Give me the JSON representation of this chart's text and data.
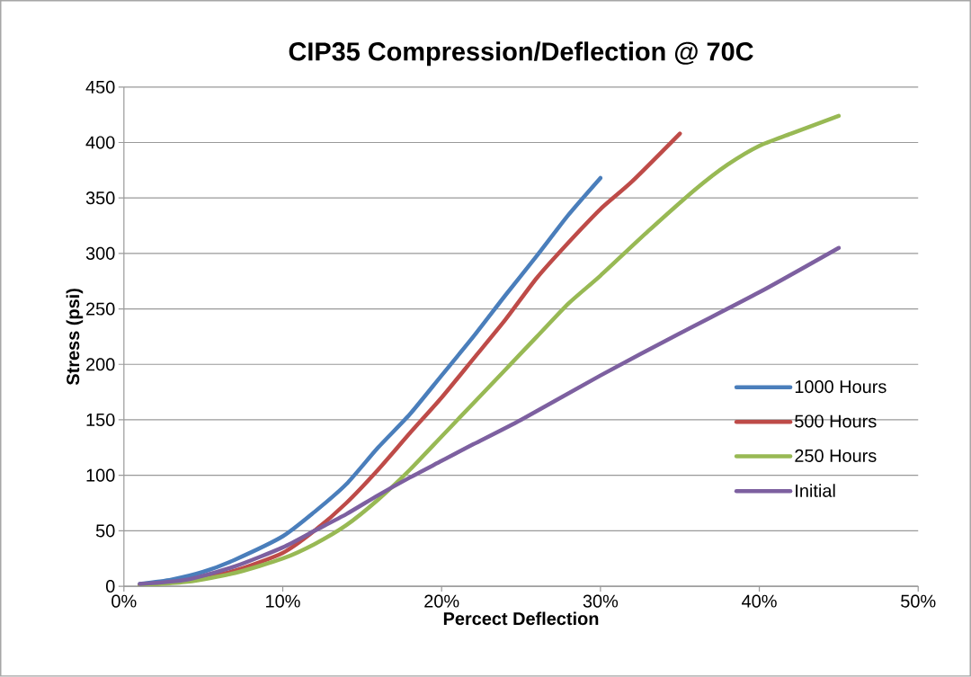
{
  "chart_data": {
    "type": "line",
    "title": "CIP35 Compression/Deflection @ 70C",
    "xlabel": "Percect Deflection",
    "ylabel": "Stress (psi)",
    "xlim": [
      0,
      50
    ],
    "ylim": [
      0,
      450
    ],
    "xticks": [
      {
        "value": 0,
        "label": "0%"
      },
      {
        "value": 10,
        "label": "10%"
      },
      {
        "value": 20,
        "label": "20%"
      },
      {
        "value": 30,
        "label": "30%"
      },
      {
        "value": 40,
        "label": "40%"
      },
      {
        "value": 50,
        "label": "50%"
      }
    ],
    "yticks": [
      0,
      50,
      100,
      150,
      200,
      250,
      300,
      350,
      400,
      450
    ],
    "grid": "y",
    "legend": "right",
    "marker": "none",
    "line_style": "solid",
    "series": [
      {
        "name": "1000 Hours",
        "color": "#4a7ebb",
        "x": [
          1,
          3,
          5,
          7,
          10,
          12,
          14,
          16,
          18,
          20,
          22,
          24,
          26,
          28,
          30
        ],
        "values": [
          2,
          6,
          13,
          24,
          45,
          67,
          92,
          125,
          155,
          190,
          225,
          262,
          298,
          335,
          368
        ]
      },
      {
        "name": "500 Hours",
        "color": "#be4b48",
        "x": [
          1,
          4,
          7,
          10,
          12,
          14,
          16,
          18,
          20,
          22,
          24,
          26,
          28,
          30,
          32,
          35
        ],
        "values": [
          1,
          5,
          14,
          30,
          50,
          75,
          105,
          138,
          170,
          205,
          240,
          278,
          310,
          340,
          365,
          408
        ]
      },
      {
        "name": "250 Hours",
        "color": "#98b954",
        "x": [
          1,
          4,
          7,
          10,
          12,
          14,
          16,
          18,
          20,
          22,
          24,
          26,
          28,
          30,
          33,
          36,
          38,
          40,
          42,
          45
        ],
        "values": [
          1,
          4,
          12,
          25,
          38,
          55,
          78,
          105,
          135,
          165,
          195,
          225,
          255,
          280,
          320,
          358,
          380,
          397,
          408,
          424
        ]
      },
      {
        "name": "Initial",
        "color": "#7d60a0",
        "x": [
          1,
          4,
          7,
          10,
          12,
          14,
          16,
          18,
          20,
          22,
          25,
          30,
          35,
          40,
          45
        ],
        "values": [
          2,
          6,
          18,
          35,
          50,
          65,
          82,
          98,
          113,
          128,
          150,
          190,
          228,
          265,
          305
        ]
      }
    ]
  }
}
